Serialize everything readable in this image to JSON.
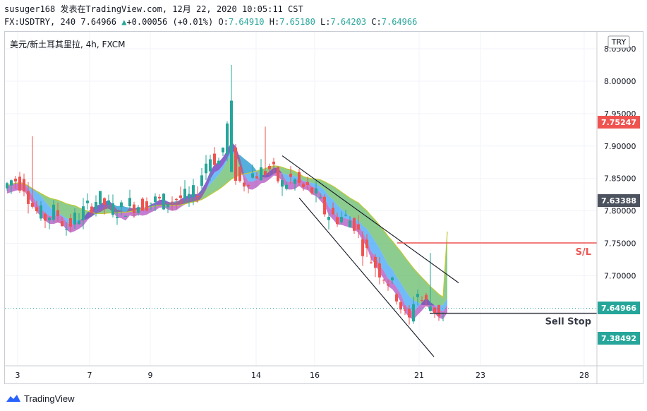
{
  "header": {
    "line1": "susuger168 发表在TradingView.com, 12月 22, 2020 10:05:11 CST",
    "symbol": "FX:USDTRY, 240",
    "last": "7.64966",
    "change_arrow": "▲",
    "change": "+0.00056 (+0.01%)",
    "o_label": "O:",
    "o": "7.64910",
    "h_label": "H:",
    "h": "7.65180",
    "l_label": "L:",
    "l": "7.64203",
    "c_label": "C:",
    "c": "7.64966"
  },
  "chart_title": "美元/新土耳其里拉, 4h, FXCM",
  "currency_badge": "TRY",
  "footer": {
    "brand": "TradingView",
    "logo_icon": "tradingview-logo-icon"
  },
  "colors": {
    "up": "#26a69a",
    "down": "#ef5350",
    "green_ribbon": "#66bb6a",
    "blue_ribbon": "#42a5f5",
    "purple_ribbon": "#9c27b0",
    "sl_line": "#ef5350",
    "sell_stop_line": "#363a45",
    "grid": "#f0f3fa"
  },
  "chart_data": {
    "type": "candlestick",
    "y_axis": {
      "ticks": [
        "7.70000",
        "7.75000",
        "7.80000",
        "7.85000",
        "7.90000",
        "7.95000",
        "8.00000",
        "8.05000"
      ],
      "range": [
        7.6,
        8.08
      ]
    },
    "x_axis": {
      "ticks": [
        "3",
        "7",
        "9",
        "14",
        "16",
        "21",
        "23",
        "28"
      ]
    },
    "price_labels": [
      {
        "value": "7.75247",
        "color": "#ef5350"
      },
      {
        "value": "7.63388",
        "color": "#4c525e"
      },
      {
        "value": "7.64966",
        "color": "#26a69a"
      },
      {
        "value": "7.38492",
        "color": "#26a69a"
      }
    ],
    "annotations": [
      {
        "text": "S/L",
        "value": 7.7505,
        "color": "#ef5350"
      },
      {
        "text": "Sell Stop",
        "value": 7.642,
        "color": "#363a45"
      }
    ],
    "last_price": 7.64966
  }
}
